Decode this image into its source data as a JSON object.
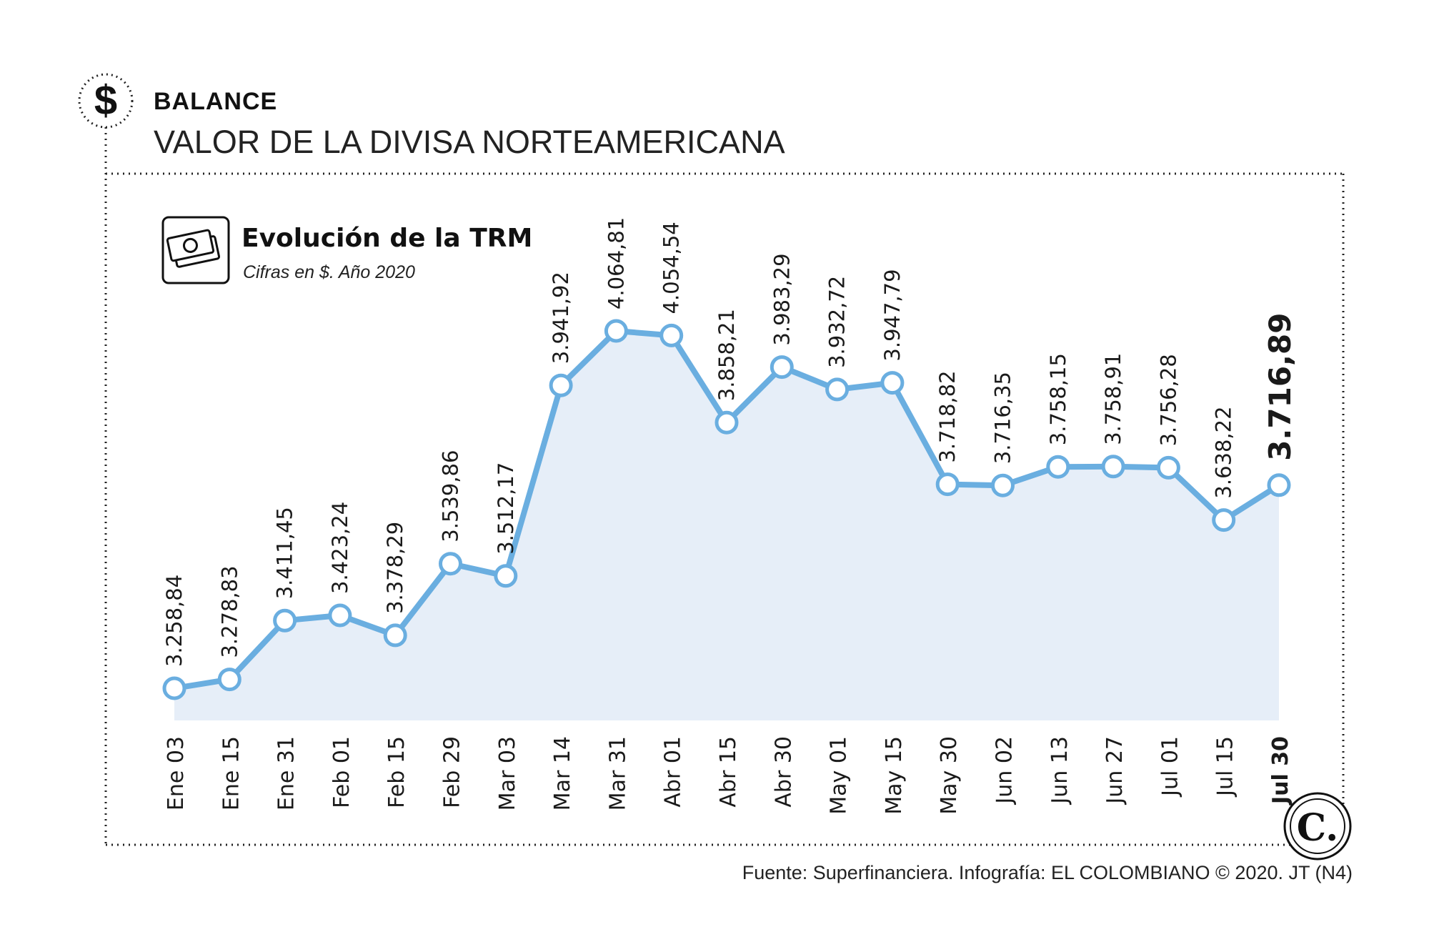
{
  "header": {
    "kicker": "BALANCE",
    "title": "VALOR DE LA DIVISA NORTEAMERICANA",
    "dollar_symbol": "$"
  },
  "panel": {
    "title": "Evolución de la TRM",
    "subtitle": "Cifras en $. Año 2020",
    "icon": "money-bills-icon"
  },
  "footer": {
    "source": "Fuente: Superfinanciera. Infografía: EL COLOMBIANO © 2020. JT (N4)",
    "logo_letter": "C."
  },
  "colors": {
    "line": "#6aaee0",
    "area": "#e6eef8",
    "text": "#1a1a1a"
  },
  "chart_data": {
    "type": "line",
    "title": "Evolución de la TRM",
    "subtitle": "Cifras en $. Año 2020",
    "xlabel": "",
    "ylabel": "",
    "grid": false,
    "area_fill": true,
    "ylim": [
      3200,
      4100
    ],
    "categories": [
      "Ene 03",
      "Ene 15",
      "Ene 31",
      "Feb 01",
      "Feb 15",
      "Feb 29",
      "Mar 03",
      "Mar 14",
      "Mar 31",
      "Abr 01",
      "Abr 15",
      "Abr 30",
      "May 01",
      "May 15",
      "May 30",
      "Jun 02",
      "Jun 13",
      "Jun 27",
      "Jul 01",
      "Jul 15",
      "Jul 30"
    ],
    "values": [
      3258.84,
      3278.83,
      3411.45,
      3423.24,
      3378.29,
      3539.86,
      3512.17,
      3941.92,
      4064.81,
      4054.54,
      3858.21,
      3983.29,
      3932.72,
      3947.79,
      3718.82,
      3716.35,
      3758.15,
      3758.91,
      3756.28,
      3638.22,
      3716.89
    ],
    "labels": [
      "3.258,84",
      "3.278,83",
      "3.411,45",
      "3.423,24",
      "3.378,29",
      "3.539,86",
      "3.512,17",
      "3.941,92",
      "4.064,81",
      "4.054,54",
      "3.858,21",
      "3.983,29",
      "3.932,72",
      "3.947,79",
      "3.718,82",
      "3.716,35",
      "3.758,15",
      "3.758,91",
      "3.756,28",
      "3.638,22",
      "3.716,89"
    ],
    "highlight_last": true
  }
}
